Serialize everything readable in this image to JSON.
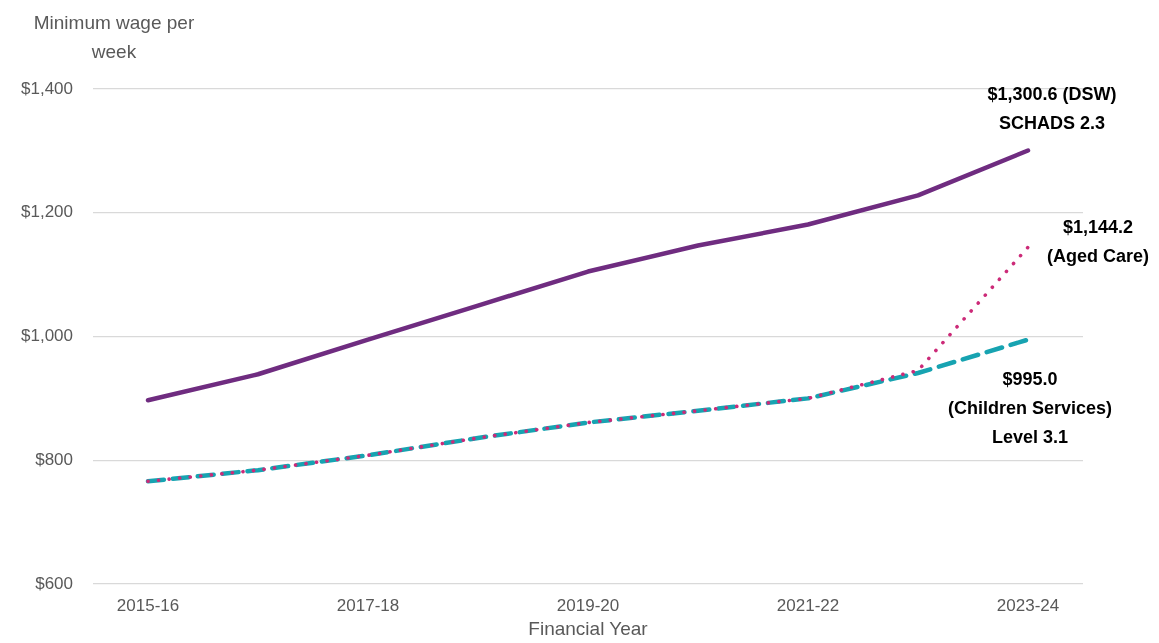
{
  "chart_data": {
    "type": "line",
    "ylabel": "Minimum wage per week",
    "xlabel": "Financial Year",
    "categories": [
      "2015-16",
      null,
      "2017-18",
      null,
      "2019-20",
      null,
      "2021-22",
      null,
      "2023-24"
    ],
    "series": [
      {
        "color": "#6f2c80",
        "line_style": "solid",
        "values": [
          897,
          939,
          995,
          1050,
          1105,
          1147,
          1181,
          1228,
          1300.6
        ]
      },
      {
        "color": "#cc2a78",
        "line_style": "dotted",
        "values": [
          766,
          784,
          808,
          836,
          861,
          880,
          900,
          945,
          1144.2
        ]
      },
      {
        "color": "#17a3b1",
        "line_style": "dashed",
        "values": [
          766,
          784,
          808,
          836,
          861,
          880,
          900,
          941,
          995.0
        ]
      }
    ],
    "ylim": [
      600,
      1400
    ],
    "yticks": [
      {
        "value": 600,
        "label": "$600"
      },
      {
        "value": 800,
        "label": "$800"
      },
      {
        "value": 1000,
        "label": "$1,000"
      },
      {
        "value": 1200,
        "label": "$1,200"
      },
      {
        "value": 1400,
        "label": "$1,400"
      }
    ],
    "grid": "y",
    "legend": false,
    "marker": "none",
    "annotations": [
      {
        "text": "$1,300.6 (DSW)\nSCHADS 2.3",
        "x": "2023-24",
        "y": 1300.6
      },
      {
        "text": "$1,144.2\n(Aged Care)",
        "x": "2023-24",
        "y": 1144.2
      },
      {
        "text": "$995.0\n(Children Services)\nLevel 3.1",
        "x": "2023-24",
        "y": 995.0
      }
    ]
  }
}
